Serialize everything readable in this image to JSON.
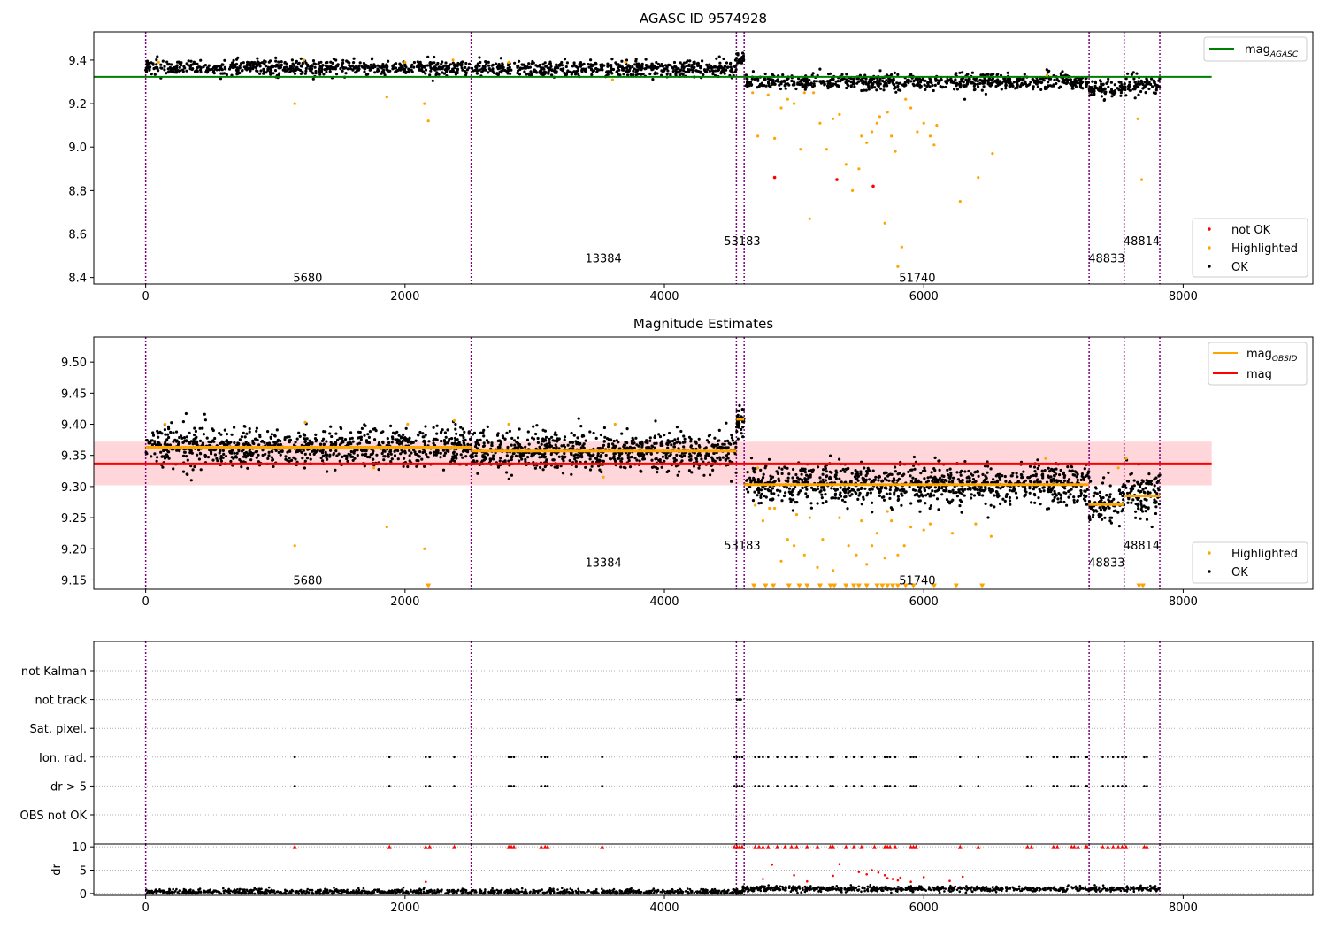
{
  "figure": {
    "colors": {
      "ok": "#000000",
      "highlighted": "#ffa500",
      "not_ok": "#ff0000",
      "mag_agasc_line": "#008000",
      "mag_line": "#ff0000",
      "mag_band": "#ffd6da",
      "mag_obsid_line": "#ffa500",
      "obsid_boundary": "#800080",
      "grid": "#b0b0b0"
    }
  },
  "chart_data": [
    {
      "type": "scatter",
      "title": "AGASC ID 9574928",
      "xlabel": "",
      "ylabel": "",
      "xlim": [
        -400,
        9000
      ],
      "ylim": [
        8.37,
        9.53
      ],
      "x_ticks": [
        0,
        2000,
        4000,
        6000,
        8000
      ],
      "y_ticks": [
        8.4,
        8.6,
        8.8,
        9.0,
        9.2,
        9.4
      ],
      "legend_lines": {
        "position": "top-right",
        "entries": [
          {
            "label": "mag",
            "subscript": "AGASC",
            "style": "line",
            "color": "#008000"
          }
        ]
      },
      "legend_points": {
        "position": "bottom-right",
        "entries": [
          {
            "label": "not OK",
            "color": "#ff0000"
          },
          {
            "label": "Highlighted",
            "color": "#ffa500"
          },
          {
            "label": "OK",
            "color": "#000000"
          }
        ]
      },
      "horizontal_lines": [
        {
          "name": "mag_AGASC",
          "y": 9.323,
          "x_range": [
            -400,
            8220
          ],
          "color": "#008000"
        }
      ],
      "obsid_boundaries": [
        0,
        2510,
        4555,
        4615,
        7275,
        7545,
        7820
      ],
      "obsid_labels": [
        {
          "text": "5680",
          "x": 1250,
          "y": 8.4
        },
        {
          "text": "13384",
          "x": 3530,
          "y": 8.49
        },
        {
          "text": "53183",
          "x": 4600,
          "y": 8.57
        },
        {
          "text": "51740",
          "x": 5950,
          "y": 8.4
        },
        {
          "text": "48833",
          "x": 7410,
          "y": 8.49
        },
        {
          "text": "48814",
          "x": 7680,
          "y": 8.57
        }
      ],
      "ok_segments": [
        {
          "x_start": 0,
          "x_end": 2510,
          "center": 9.365,
          "spread": 0.018,
          "count": 640
        },
        {
          "x_start": 2510,
          "x_end": 4555,
          "center": 9.36,
          "spread": 0.018,
          "count": 520
        },
        {
          "x_start": 4555,
          "x_end": 4615,
          "center": 9.405,
          "spread": 0.012,
          "count": 30
        },
        {
          "x_start": 4615,
          "x_end": 7275,
          "center": 9.3,
          "spread": 0.018,
          "count": 700
        },
        {
          "x_start": 7275,
          "x_end": 7545,
          "center": 9.27,
          "spread": 0.02,
          "count": 80
        },
        {
          "x_start": 7545,
          "x_end": 7820,
          "center": 9.285,
          "spread": 0.02,
          "count": 80
        }
      ],
      "highlighted_points": {
        "x": [
          100,
          1150,
          1220,
          1860,
          2000,
          2150,
          2180,
          2370,
          2800,
          3600,
          3700,
          4680,
          4720,
          4800,
          4850,
          4900,
          4950,
          5000,
          5050,
          5080,
          5120,
          5150,
          5200,
          5250,
          5300,
          5350,
          5400,
          5450,
          5500,
          5520,
          5560,
          5600,
          5640,
          5660,
          5700,
          5720,
          5750,
          5780,
          5800,
          5830,
          5860,
          5900,
          5950,
          6000,
          6050,
          6080,
          6100,
          6280,
          6420,
          6530,
          6950,
          7650,
          7680
        ],
        "y": [
          9.39,
          9.2,
          9.4,
          9.23,
          9.39,
          9.2,
          9.12,
          9.4,
          9.39,
          9.31,
          9.39,
          9.25,
          9.05,
          9.24,
          9.04,
          9.18,
          9.22,
          9.2,
          8.99,
          9.25,
          8.67,
          9.25,
          9.11,
          8.99,
          9.13,
          9.15,
          8.92,
          8.8,
          8.9,
          9.05,
          9.02,
          9.07,
          9.11,
          9.14,
          8.65,
          9.16,
          9.05,
          8.98,
          8.45,
          8.54,
          9.22,
          9.18,
          9.07,
          9.11,
          9.05,
          9.01,
          9.1,
          8.75,
          8.86,
          8.97,
          9.33,
          9.13,
          8.85
        ]
      },
      "not_ok_points": {
        "x": [
          4850,
          5330,
          5610
        ],
        "y": [
          8.86,
          8.85,
          8.82
        ]
      }
    },
    {
      "type": "scatter",
      "title": "Magnitude Estimates",
      "xlabel": "",
      "ylabel": "",
      "xlim": [
        -400,
        9000
      ],
      "ylim": [
        9.135,
        9.54
      ],
      "x_ticks": [
        0,
        2000,
        4000,
        6000,
        8000
      ],
      "y_ticks": [
        9.15,
        9.2,
        9.25,
        9.3,
        9.35,
        9.4,
        9.45,
        9.5
      ],
      "legend_lines": {
        "position": "top-right",
        "entries": [
          {
            "label": "mag",
            "subscript": "OBSID",
            "style": "line",
            "color": "#ffa500"
          },
          {
            "label": "mag",
            "style": "line",
            "color": "#ff0000"
          }
        ]
      },
      "legend_points": {
        "position": "bottom-right",
        "entries": [
          {
            "label": "Highlighted",
            "color": "#ffa500"
          },
          {
            "label": "OK",
            "color": "#000000"
          }
        ]
      },
      "mag": {
        "value": 9.337,
        "band": [
          9.302,
          9.372
        ],
        "x_range": [
          -400,
          8220
        ]
      },
      "mag_obsid": [
        {
          "x_start": 0,
          "x_end": 2510,
          "value": 9.363
        },
        {
          "x_start": 2510,
          "x_end": 4555,
          "value": 9.357
        },
        {
          "x_start": 4555,
          "x_end": 4615,
          "value": 9.408
        },
        {
          "x_start": 4615,
          "x_end": 7275,
          "value": 9.303
        },
        {
          "x_start": 7275,
          "x_end": 7545,
          "value": 9.271
        },
        {
          "x_start": 7545,
          "x_end": 7820,
          "value": 9.285
        }
      ],
      "obsid_boundaries": [
        0,
        2510,
        4555,
        4615,
        7275,
        7545,
        7820
      ],
      "obsid_labels": [
        {
          "text": "5680",
          "x": 1250,
          "y": 9.15
        },
        {
          "text": "13384",
          "x": 3530,
          "y": 9.178
        },
        {
          "text": "53183",
          "x": 4600,
          "y": 9.206
        },
        {
          "text": "51740",
          "x": 5950,
          "y": 9.15
        },
        {
          "text": "48833",
          "x": 7410,
          "y": 9.178
        },
        {
          "text": "48814",
          "x": 7680,
          "y": 9.206
        }
      ],
      "ok_segments": [
        {
          "x_start": 0,
          "x_end": 2510,
          "center": 9.363,
          "spread": 0.015,
          "count": 900
        },
        {
          "x_start": 2510,
          "x_end": 4555,
          "center": 9.357,
          "spread": 0.016,
          "count": 760
        },
        {
          "x_start": 4555,
          "x_end": 4615,
          "center": 9.408,
          "spread": 0.01,
          "count": 40
        },
        {
          "x_start": 4615,
          "x_end": 7275,
          "center": 9.303,
          "spread": 0.016,
          "count": 1000
        },
        {
          "x_start": 7275,
          "x_end": 7545,
          "center": 9.271,
          "spread": 0.018,
          "count": 100
        },
        {
          "x_start": 7545,
          "x_end": 7820,
          "center": 9.285,
          "spread": 0.018,
          "count": 100
        }
      ],
      "highlighted_points": {
        "x": [
          150,
          1150,
          1230,
          1760,
          1860,
          2020,
          2150,
          2380,
          2800,
          3530,
          3620,
          4700,
          4720,
          4760,
          4810,
          4850,
          4900,
          4950,
          5000,
          5020,
          5080,
          5120,
          5180,
          5220,
          5300,
          5350,
          5420,
          5480,
          5520,
          5560,
          5600,
          5640,
          5700,
          5720,
          5750,
          5800,
          5850,
          5900,
          6000,
          6050,
          6220,
          6400,
          6520,
          6940,
          7500,
          7560
        ],
        "y": [
          9.4,
          9.205,
          9.403,
          9.33,
          9.235,
          9.4,
          9.2,
          9.406,
          9.4,
          9.315,
          9.4,
          9.27,
          9.33,
          9.245,
          9.265,
          9.265,
          9.18,
          9.215,
          9.205,
          9.255,
          9.19,
          9.25,
          9.17,
          9.215,
          9.165,
          9.25,
          9.205,
          9.19,
          9.245,
          9.175,
          9.205,
          9.225,
          9.185,
          9.26,
          9.245,
          9.19,
          9.205,
          9.235,
          9.23,
          9.24,
          9.225,
          9.24,
          9.22,
          9.345,
          9.33,
          9.345
        ]
      },
      "lower_limit_markers": {
        "y": 9.14,
        "x": [
          2180,
          4690,
          4780,
          4840,
          4960,
          5040,
          5100,
          5200,
          5280,
          5310,
          5400,
          5460,
          5500,
          5560,
          5640,
          5680,
          5720,
          5760,
          5800,
          5860,
          5920,
          6080,
          6250,
          6450,
          7660,
          7690
        ]
      }
    },
    {
      "type": "scatter",
      "title": "",
      "xlabel": "",
      "ylabel": "",
      "xlim": [
        -400,
        9000
      ],
      "categories": [
        "not Kalman",
        "not track",
        "Sat. pixel.",
        "Ion. rad.",
        "dr > 5",
        "OBS not OK"
      ],
      "flags": {
        "not track": [
          4560,
          4575,
          4590
        ],
        "Ion. rad.": [
          1150,
          1880,
          2160,
          2190,
          2380,
          2800,
          2820,
          2840,
          3050,
          3080,
          3100,
          3520,
          4540,
          4560,
          4580,
          4600,
          4700,
          4730,
          4760,
          4800,
          4870,
          4930,
          4980,
          5020,
          5100,
          5180,
          5280,
          5300,
          5400,
          5460,
          5520,
          5620,
          5700,
          5720,
          5740,
          5780,
          5900,
          5920,
          5940,
          6280,
          6420,
          6800,
          6830,
          7000,
          7030,
          7140,
          7160,
          7190,
          7250,
          7260,
          7380,
          7420,
          7460,
          7500,
          7530,
          7560,
          7700,
          7720
        ],
        "dr > 5": [
          1150,
          1880,
          2160,
          2190,
          2380,
          2800,
          2820,
          2840,
          3050,
          3080,
          3100,
          3520,
          4540,
          4560,
          4580,
          4600,
          4700,
          4730,
          4760,
          4800,
          4870,
          4930,
          4980,
          5020,
          5100,
          5180,
          5280,
          5300,
          5400,
          5460,
          5520,
          5620,
          5700,
          5720,
          5740,
          5780,
          5900,
          5920,
          5940,
          6280,
          6420,
          6800,
          6830,
          7000,
          7030,
          7140,
          7160,
          7190,
          7250,
          7260,
          7380,
          7420,
          7460,
          7500,
          7530,
          7560,
          7700,
          7720
        ]
      },
      "obsid_boundaries": [
        0,
        2510,
        4555,
        4615,
        7275,
        7545,
        7820
      ]
    },
    {
      "type": "scatter",
      "title": "",
      "xlabel": "",
      "ylabel": "dr",
      "xlim": [
        -400,
        9000
      ],
      "ylim": [
        -0.4,
        10.6
      ],
      "x_ticks": [
        0,
        2000,
        4000,
        6000,
        8000
      ],
      "y_ticks": [
        0,
        5,
        10
      ],
      "clipped_at": 10,
      "dr_points": {
        "x": [
          4760,
          4830,
          5000,
          5100,
          5300,
          5350,
          5500,
          5560,
          5600,
          5650,
          5700,
          5720,
          5760,
          5800,
          5820,
          5900,
          6000,
          6200,
          6300,
          2160
        ],
        "y": [
          3.1,
          6.2,
          3.9,
          2.6,
          3.8,
          6.3,
          4.6,
          4.1,
          5.0,
          4.5,
          3.9,
          3.3,
          3.1,
          2.8,
          3.4,
          2.5,
          3.5,
          2.7,
          3.6,
          2.5
        ]
      },
      "clipped_points_x": [
        1150,
        1880,
        2160,
        2190,
        2380,
        2800,
        2820,
        2840,
        3050,
        3080,
        3100,
        3520,
        4540,
        4560,
        4580,
        4600,
        4700,
        4730,
        4760,
        4800,
        4870,
        4930,
        4980,
        5020,
        5100,
        5180,
        5280,
        5300,
        5400,
        5460,
        5520,
        5620,
        5700,
        5720,
        5740,
        5780,
        5900,
        5920,
        5940,
        6280,
        6420,
        6800,
        6830,
        7000,
        7030,
        7140,
        7160,
        7190,
        7250,
        7260,
        7380,
        7420,
        7460,
        7500,
        7530,
        7560,
        7700,
        7720
      ],
      "obsid_boundaries": [
        0,
        2510,
        4555,
        4615,
        7275,
        7545,
        7820
      ]
    }
  ]
}
